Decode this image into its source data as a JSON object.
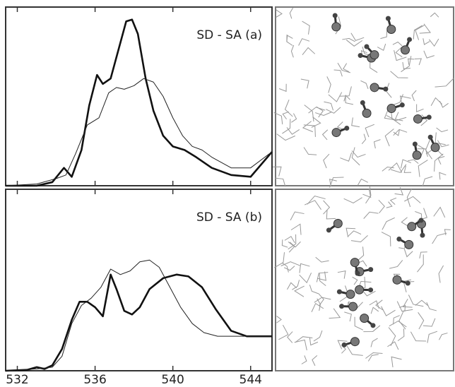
{
  "chart_data": [
    {
      "type": "line",
      "title": "SD - SA (a)",
      "xlim": [
        531.4,
        545.1
      ],
      "ylim": [
        0,
        1
      ],
      "series": [
        {
          "color": "#111111",
          "linewidth": 2.6,
          "x": [
            531.4,
            533,
            533.8,
            534.4,
            534.8,
            535.3,
            535.7,
            536.1,
            536.4,
            536.8,
            537.2,
            537.6,
            537.9,
            538.2,
            538.6,
            539.0,
            539.5,
            540.0,
            540.6,
            541.2,
            542,
            543,
            544,
            545.1
          ],
          "values": [
            0,
            0,
            0.02,
            0.1,
            0.05,
            0.2,
            0.45,
            0.62,
            0.57,
            0.6,
            0.76,
            0.92,
            0.93,
            0.85,
            0.6,
            0.42,
            0.28,
            0.22,
            0.2,
            0.16,
            0.1,
            0.06,
            0.05,
            0.19
          ]
        },
        {
          "color": "#222222",
          "linewidth": 1,
          "x": [
            531.4,
            533,
            534,
            534.5,
            535,
            535.6,
            536.2,
            536.7,
            537.1,
            537.5,
            538,
            538.5,
            539,
            539.5,
            540,
            540.5,
            541,
            541.5,
            542,
            543,
            544,
            545.1
          ],
          "values": [
            0,
            0.01,
            0.04,
            0.06,
            0.18,
            0.34,
            0.38,
            0.52,
            0.55,
            0.54,
            0.56,
            0.6,
            0.58,
            0.5,
            0.38,
            0.28,
            0.22,
            0.2,
            0.16,
            0.1,
            0.1,
            0.19
          ]
        }
      ]
    },
    {
      "type": "line",
      "title": "SD - SA (b)",
      "xlim": [
        531.4,
        545.1
      ],
      "ylim": [
        0,
        1
      ],
      "xticks": [
        532,
        536,
        540,
        544
      ],
      "series": [
        {
          "color": "#111111",
          "linewidth": 2.6,
          "x": [
            531.4,
            532.5,
            533,
            533.4,
            533.8,
            534.3,
            534.8,
            535.2,
            535.6,
            536,
            536.4,
            536.8,
            537.1,
            537.5,
            537.9,
            538.3,
            538.8,
            539.5,
            540.2,
            540.8,
            541.5,
            542.2,
            543,
            543.8,
            545.1
          ],
          "values": [
            0,
            0.005,
            0.02,
            0.01,
            0.03,
            0.12,
            0.28,
            0.38,
            0.38,
            0.35,
            0.3,
            0.53,
            0.45,
            0.33,
            0.31,
            0.35,
            0.45,
            0.51,
            0.53,
            0.52,
            0.46,
            0.34,
            0.22,
            0.19,
            0.19
          ]
        },
        {
          "color": "#222222",
          "linewidth": 1,
          "x": [
            531.4,
            533,
            533.8,
            534.3,
            534.8,
            535.3,
            535.8,
            536.3,
            536.8,
            537.3,
            537.8,
            538.3,
            538.8,
            539.3,
            539.8,
            540.4,
            541,
            541.6,
            542.3,
            543,
            545.1
          ],
          "values": [
            0,
            0.01,
            0.02,
            0.08,
            0.26,
            0.36,
            0.4,
            0.46,
            0.56,
            0.53,
            0.55,
            0.6,
            0.61,
            0.57,
            0.47,
            0.35,
            0.26,
            0.21,
            0.19,
            0.19,
            0.19
          ]
        }
      ]
    }
  ]
}
